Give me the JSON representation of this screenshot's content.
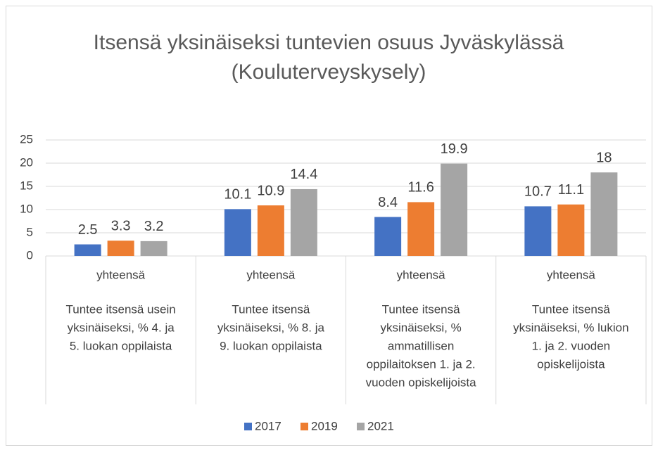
{
  "chart_data": {
    "type": "bar",
    "title": [
      "Itsensä yksinäiseksi tuntevien osuus Jyväskylässä",
      "(Kouluterveyskysely)"
    ],
    "subcategories": [
      "yhteensä",
      "yhteensä",
      "yhteensä",
      "yhteensä"
    ],
    "categories": [
      [
        "Tuntee itsensä usein",
        "yksinäiseksi, % 4. ja",
        "5. luokan oppilaista"
      ],
      [
        "Tuntee itsensä",
        "yksinäiseksi, % 8. ja",
        "9. luokan oppilaista"
      ],
      [
        "Tuntee itsensä",
        "yksinäiseksi, %",
        "ammatillisen",
        "oppilaitoksen 1. ja 2.",
        "vuoden opiskelijoista"
      ],
      [
        "Tuntee itsensä",
        "yksinäiseksi, % lukion",
        "1. ja 2. vuoden",
        "opiskelijoista"
      ]
    ],
    "series": [
      {
        "name": "2017",
        "color": "#4472c4",
        "values": [
          2.5,
          10.1,
          8.4,
          10.7
        ]
      },
      {
        "name": "2019",
        "color": "#ed7d31",
        "values": [
          3.3,
          10.9,
          11.6,
          11.1
        ]
      },
      {
        "name": "2021",
        "color": "#a5a5a5",
        "values": [
          3.2,
          14.4,
          19.9,
          18
        ]
      }
    ],
    "ylim": [
      0,
      25
    ],
    "yticks": [
      0,
      5,
      10,
      15,
      20,
      25
    ],
    "grid": true,
    "legend": "bottom"
  }
}
